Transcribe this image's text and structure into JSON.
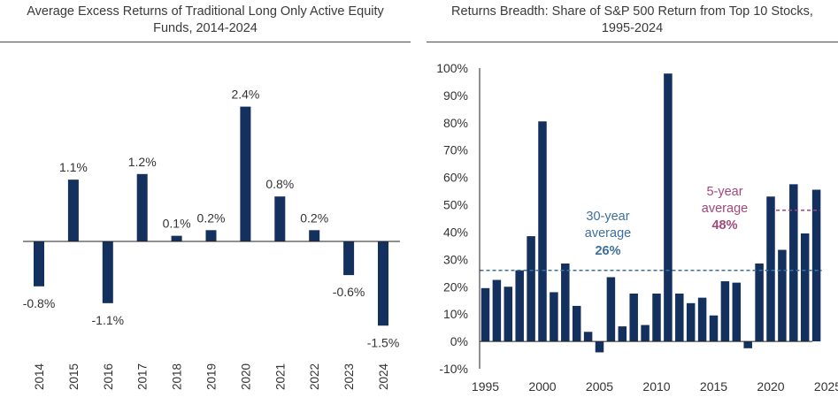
{
  "colors": {
    "bar": "#14305e",
    "axis": "#222222",
    "text": "#333333",
    "avg30": "#3d6f9e",
    "avg5": "#a3467a"
  },
  "chart_data": [
    {
      "type": "bar",
      "title": "Average Excess Returns of Traditional Long Only Active Equity Funds, 2014-2024",
      "title_lines": [
        "Average Excess Returns of Traditional Long Only Active Equity",
        "Funds, 2014-2024"
      ],
      "categories": [
        "2014",
        "2015",
        "2016",
        "2017",
        "2018",
        "2019",
        "2020",
        "2021",
        "2022",
        "2023",
        "2024"
      ],
      "values": [
        -0.8,
        1.1,
        -1.1,
        1.2,
        0.1,
        0.2,
        2.4,
        0.8,
        0.2,
        -0.6,
        -1.5
      ],
      "data_labels": [
        "-0.8%",
        "1.1%",
        "-1.1%",
        "1.2%",
        "0.1%",
        "0.2%",
        "2.4%",
        "0.8%",
        "0.2%",
        "-0.6%",
        "-1.5%"
      ],
      "xlabel": "",
      "ylabel": "",
      "grid": false
    },
    {
      "type": "bar",
      "title": "Returns Breadth: Share of S&P 500 Return from Top 10 Stocks, 1995-2024",
      "title_lines": [
        "Returns Breadth: Share of S&P 500 Return from Top 10 Stocks,",
        "1995-2024"
      ],
      "x": [
        1995,
        1996,
        1997,
        1998,
        1999,
        2000,
        2001,
        2002,
        2003,
        2004,
        2005,
        2006,
        2007,
        2008,
        2009,
        2010,
        2011,
        2012,
        2013,
        2014,
        2015,
        2016,
        2017,
        2018,
        2019,
        2020,
        2021,
        2022,
        2023,
        2024
      ],
      "values": [
        19.5,
        22.5,
        20,
        26,
        38.5,
        80.5,
        18,
        28.5,
        13,
        3.5,
        -4,
        23.5,
        5.5,
        17.5,
        6,
        17.5,
        98,
        17.5,
        14,
        16,
        9.5,
        22,
        21.5,
        -2.5,
        28.5,
        53,
        33.5,
        57.5,
        39.5,
        55.5
      ],
      "ylim": [
        -10,
        100
      ],
      "yticks": [
        "-10%",
        "0%",
        "10%",
        "20%",
        "30%",
        "40%",
        "50%",
        "60%",
        "70%",
        "80%",
        "90%",
        "100%"
      ],
      "ytick_values": [
        -10,
        0,
        10,
        20,
        30,
        40,
        50,
        60,
        70,
        80,
        90,
        100
      ],
      "xticks": [
        "1995",
        "2000",
        "2005",
        "2010",
        "2015",
        "2020",
        "2025"
      ],
      "xtick_values": [
        1995,
        2000,
        2005,
        2010,
        2015,
        2020,
        2025
      ],
      "annotations": [
        {
          "lines": [
            "30-year",
            "average"
          ],
          "value_label": "26%",
          "value": 26,
          "x_start": 1995,
          "x_end": 2024
        },
        {
          "lines": [
            "5-year",
            "average"
          ],
          "value_label": "48%",
          "value": 48,
          "x_start": 2020,
          "x_end": 2024
        }
      ],
      "xlabel": "",
      "ylabel": "",
      "grid": false
    }
  ]
}
